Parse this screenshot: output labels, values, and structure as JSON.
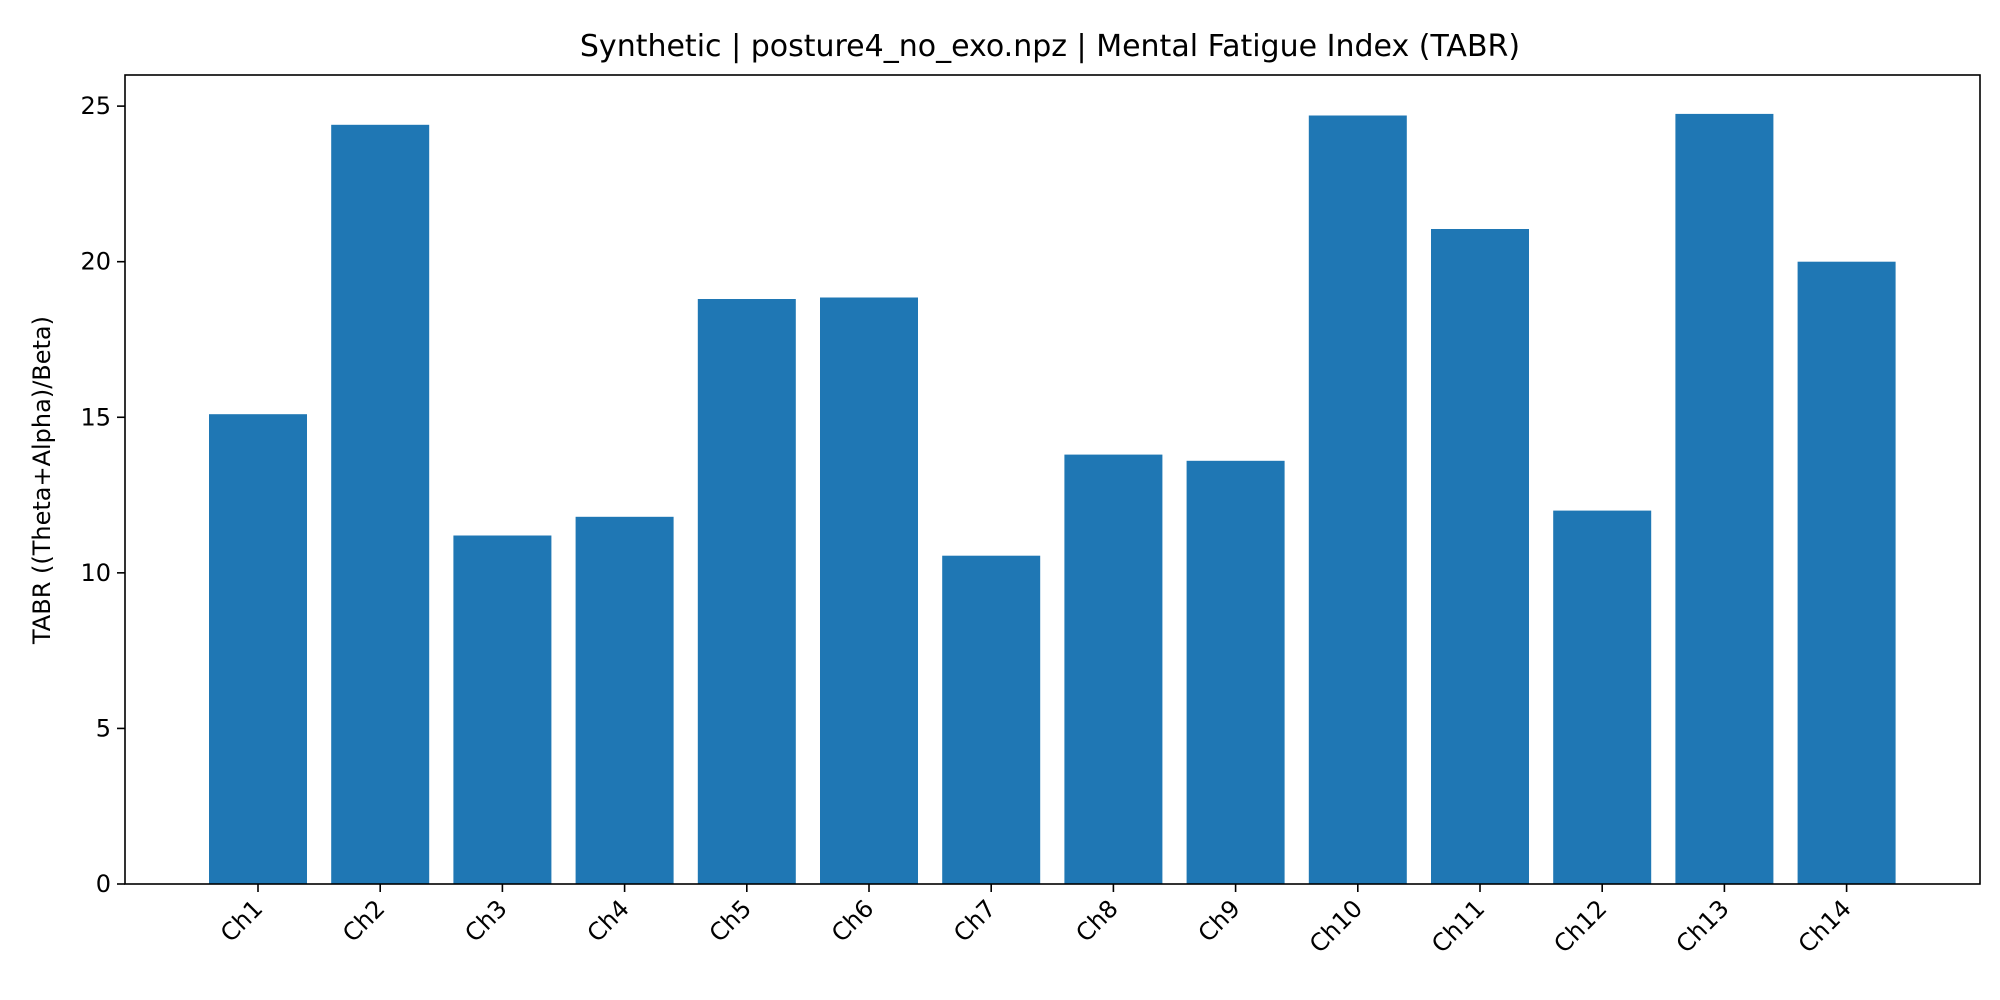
{
  "colors": {
    "bar": "#1f77b4",
    "axis": "#000000",
    "background": "#ffffff"
  },
  "chart_data": {
    "type": "bar",
    "title": "Synthetic | posture4_no_exo.npz | Mental Fatigue Index (TABR)",
    "xlabel": "",
    "ylabel": "TABR ((Theta+Alpha)/Beta)",
    "categories": [
      "Ch1",
      "Ch2",
      "Ch3",
      "Ch4",
      "Ch5",
      "Ch6",
      "Ch7",
      "Ch8",
      "Ch9",
      "Ch10",
      "Ch11",
      "Ch12",
      "Ch13",
      "Ch14"
    ],
    "values": [
      15.1,
      24.4,
      11.2,
      11.8,
      18.8,
      18.85,
      10.55,
      13.8,
      13.6,
      24.7,
      21.05,
      12.0,
      24.75,
      20.0
    ],
    "ylim": [
      0,
      26
    ],
    "yticks": [
      0,
      5,
      10,
      15,
      20,
      25
    ],
    "grid": false,
    "legend": "none"
  }
}
